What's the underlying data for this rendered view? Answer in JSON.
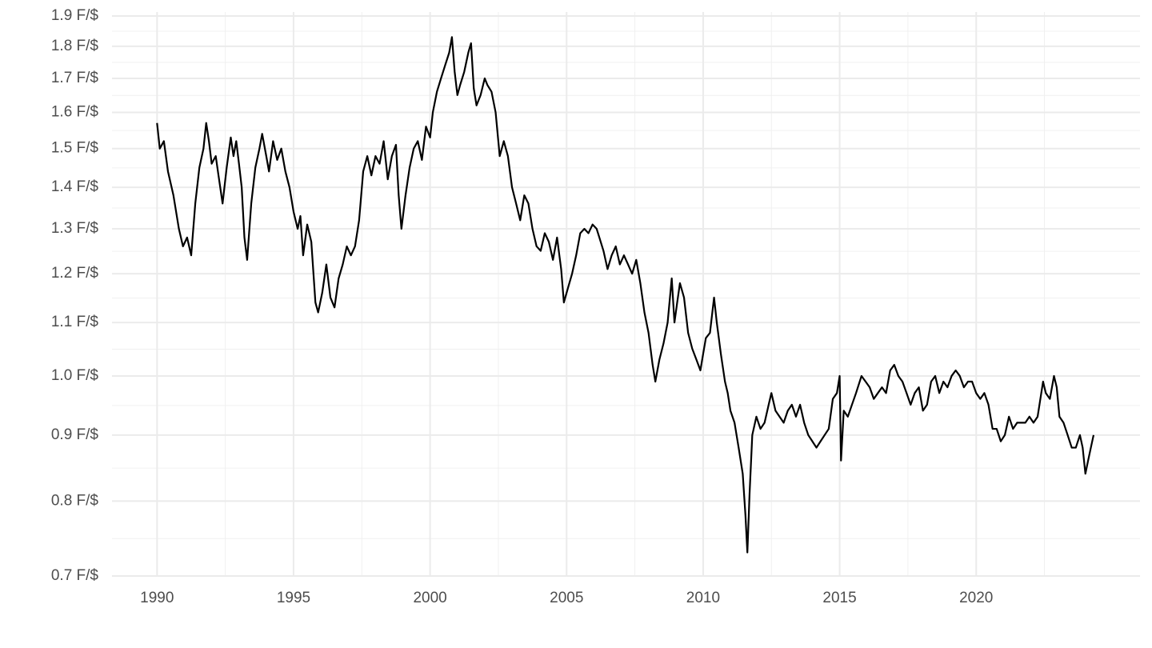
{
  "chart_data": {
    "type": "line",
    "color": "#000000",
    "log_y": true,
    "grid": true,
    "xlim": [
      1988.35,
      2026.0
    ],
    "xticks": [
      1990,
      1995,
      2000,
      2005,
      2010,
      2015,
      2020
    ],
    "ylim": [
      0.7,
      1.9
    ],
    "yticks": [
      {
        "value": 0.7,
        "label": "0.7 F/$"
      },
      {
        "value": 0.8,
        "label": "0.8 F/$"
      },
      {
        "value": 0.9,
        "label": "0.9 F/$"
      },
      {
        "value": 1.0,
        "label": "1.0 F/$"
      },
      {
        "value": 1.1,
        "label": "1.1 F/$"
      },
      {
        "value": 1.2,
        "label": "1.2 F/$"
      },
      {
        "value": 1.3,
        "label": "1.3 F/$"
      },
      {
        "value": 1.4,
        "label": "1.4 F/$"
      },
      {
        "value": 1.5,
        "label": "1.5 F/$"
      },
      {
        "value": 1.6,
        "label": "1.6 F/$"
      },
      {
        "value": 1.7,
        "label": "1.7 F/$"
      },
      {
        "value": 1.8,
        "label": "1.8 F/$"
      },
      {
        "value": 1.9,
        "label": "1.9 F/$"
      }
    ],
    "x": [
      1990.0,
      1990.1,
      1990.25,
      1990.4,
      1990.6,
      1990.8,
      1990.95,
      1991.1,
      1991.25,
      1991.4,
      1991.55,
      1991.7,
      1991.8,
      1991.9,
      1992.0,
      1992.15,
      1992.25,
      1992.4,
      1992.55,
      1992.7,
      1992.8,
      1992.9,
      1993.0,
      1993.1,
      1993.2,
      1993.3,
      1993.45,
      1993.6,
      1993.75,
      1993.85,
      1994.0,
      1994.1,
      1994.25,
      1994.4,
      1994.55,
      1994.7,
      1994.85,
      1995.0,
      1995.15,
      1995.25,
      1995.35,
      1995.5,
      1995.65,
      1995.8,
      1995.9,
      1996.05,
      1996.2,
      1996.35,
      1996.5,
      1996.65,
      1996.8,
      1996.95,
      1997.1,
      1997.25,
      1997.4,
      1997.55,
      1997.7,
      1997.85,
      1998.0,
      1998.15,
      1998.3,
      1998.45,
      1998.6,
      1998.75,
      1998.85,
      1998.95,
      1999.1,
      1999.25,
      1999.4,
      1999.55,
      1999.7,
      1999.85,
      2000.0,
      2000.1,
      2000.25,
      2000.4,
      2000.55,
      2000.7,
      2000.8,
      2000.9,
      2001.0,
      2001.1,
      2001.25,
      2001.4,
      2001.5,
      2001.6,
      2001.7,
      2001.85,
      2002.0,
      2002.1,
      2002.25,
      2002.4,
      2002.55,
      2002.7,
      2002.85,
      2003.0,
      2003.15,
      2003.3,
      2003.45,
      2003.6,
      2003.75,
      2003.9,
      2004.05,
      2004.2,
      2004.35,
      2004.5,
      2004.65,
      2004.8,
      2004.9,
      2005.05,
      2005.2,
      2005.35,
      2005.5,
      2005.65,
      2005.8,
      2005.95,
      2006.1,
      2006.2,
      2006.35,
      2006.5,
      2006.65,
      2006.8,
      2006.95,
      2007.1,
      2007.25,
      2007.4,
      2007.55,
      2007.7,
      2007.85,
      2008.0,
      2008.15,
      2008.25,
      2008.4,
      2008.55,
      2008.7,
      2008.85,
      2008.95,
      2009.05,
      2009.15,
      2009.3,
      2009.45,
      2009.6,
      2009.75,
      2009.9,
      2010.0,
      2010.1,
      2010.25,
      2010.4,
      2010.5,
      2010.65,
      2010.8,
      2010.9,
      2011.0,
      2011.15,
      2011.3,
      2011.45,
      2011.55,
      2011.62,
      2011.7,
      2011.8,
      2011.95,
      2012.1,
      2012.25,
      2012.4,
      2012.5,
      2012.65,
      2012.8,
      2012.95,
      2013.1,
      2013.25,
      2013.4,
      2013.55,
      2013.7,
      2013.85,
      2014.0,
      2014.15,
      2014.3,
      2014.45,
      2014.6,
      2014.75,
      2014.9,
      2015.0,
      2015.05,
      2015.15,
      2015.3,
      2015.45,
      2015.6,
      2015.8,
      2015.95,
      2016.1,
      2016.25,
      2016.4,
      2016.55,
      2016.7,
      2016.85,
      2017.0,
      2017.15,
      2017.3,
      2017.45,
      2017.6,
      2017.75,
      2017.9,
      2018.05,
      2018.2,
      2018.35,
      2018.5,
      2018.65,
      2018.8,
      2018.95,
      2019.1,
      2019.25,
      2019.4,
      2019.55,
      2019.7,
      2019.85,
      2020.0,
      2020.15,
      2020.3,
      2020.45,
      2020.6,
      2020.75,
      2020.9,
      2021.05,
      2021.2,
      2021.35,
      2021.5,
      2021.65,
      2021.8,
      2021.95,
      2022.1,
      2022.25,
      2022.45,
      2022.55,
      2022.7,
      2022.85,
      2022.95,
      2023.05,
      2023.2,
      2023.35,
      2023.5,
      2023.65,
      2023.8,
      2023.9,
      2024.0,
      2024.1,
      2024.2,
      2024.3
    ],
    "values": [
      1.57,
      1.5,
      1.52,
      1.44,
      1.38,
      1.3,
      1.26,
      1.28,
      1.24,
      1.36,
      1.45,
      1.5,
      1.57,
      1.52,
      1.46,
      1.48,
      1.43,
      1.36,
      1.45,
      1.53,
      1.48,
      1.52,
      1.46,
      1.4,
      1.28,
      1.23,
      1.36,
      1.45,
      1.5,
      1.54,
      1.48,
      1.44,
      1.52,
      1.47,
      1.5,
      1.44,
      1.4,
      1.34,
      1.3,
      1.33,
      1.24,
      1.31,
      1.27,
      1.14,
      1.12,
      1.16,
      1.22,
      1.15,
      1.13,
      1.19,
      1.22,
      1.26,
      1.24,
      1.26,
      1.32,
      1.44,
      1.48,
      1.43,
      1.48,
      1.46,
      1.52,
      1.42,
      1.48,
      1.51,
      1.38,
      1.3,
      1.38,
      1.45,
      1.5,
      1.52,
      1.47,
      1.56,
      1.53,
      1.6,
      1.66,
      1.7,
      1.74,
      1.78,
      1.83,
      1.72,
      1.65,
      1.68,
      1.72,
      1.78,
      1.81,
      1.67,
      1.62,
      1.65,
      1.7,
      1.68,
      1.66,
      1.6,
      1.48,
      1.52,
      1.48,
      1.4,
      1.36,
      1.32,
      1.38,
      1.36,
      1.3,
      1.26,
      1.25,
      1.29,
      1.27,
      1.23,
      1.28,
      1.21,
      1.14,
      1.17,
      1.2,
      1.24,
      1.29,
      1.3,
      1.29,
      1.31,
      1.3,
      1.28,
      1.25,
      1.21,
      1.24,
      1.26,
      1.22,
      1.24,
      1.22,
      1.2,
      1.23,
      1.18,
      1.12,
      1.08,
      1.02,
      0.99,
      1.03,
      1.06,
      1.1,
      1.19,
      1.1,
      1.14,
      1.18,
      1.15,
      1.08,
      1.05,
      1.03,
      1.01,
      1.04,
      1.07,
      1.08,
      1.15,
      1.1,
      1.04,
      0.99,
      0.97,
      0.94,
      0.92,
      0.88,
      0.84,
      0.78,
      0.73,
      0.81,
      0.9,
      0.93,
      0.91,
      0.92,
      0.95,
      0.97,
      0.94,
      0.93,
      0.92,
      0.94,
      0.95,
      0.93,
      0.95,
      0.92,
      0.9,
      0.89,
      0.88,
      0.89,
      0.9,
      0.91,
      0.96,
      0.97,
      1.0,
      0.86,
      0.94,
      0.93,
      0.95,
      0.97,
      1.0,
      0.99,
      0.98,
      0.96,
      0.97,
      0.98,
      0.97,
      1.01,
      1.02,
      1.0,
      0.99,
      0.97,
      0.95,
      0.97,
      0.98,
      0.94,
      0.95,
      0.99,
      1.0,
      0.97,
      0.99,
      0.98,
      1.0,
      1.01,
      1.0,
      0.98,
      0.99,
      0.99,
      0.97,
      0.96,
      0.97,
      0.95,
      0.91,
      0.91,
      0.89,
      0.9,
      0.93,
      0.91,
      0.92,
      0.92,
      0.92,
      0.93,
      0.92,
      0.93,
      0.99,
      0.97,
      0.96,
      1.0,
      0.98,
      0.93,
      0.92,
      0.9,
      0.88,
      0.88,
      0.9,
      0.88,
      0.84,
      0.86,
      0.88,
      0.9
    ]
  }
}
